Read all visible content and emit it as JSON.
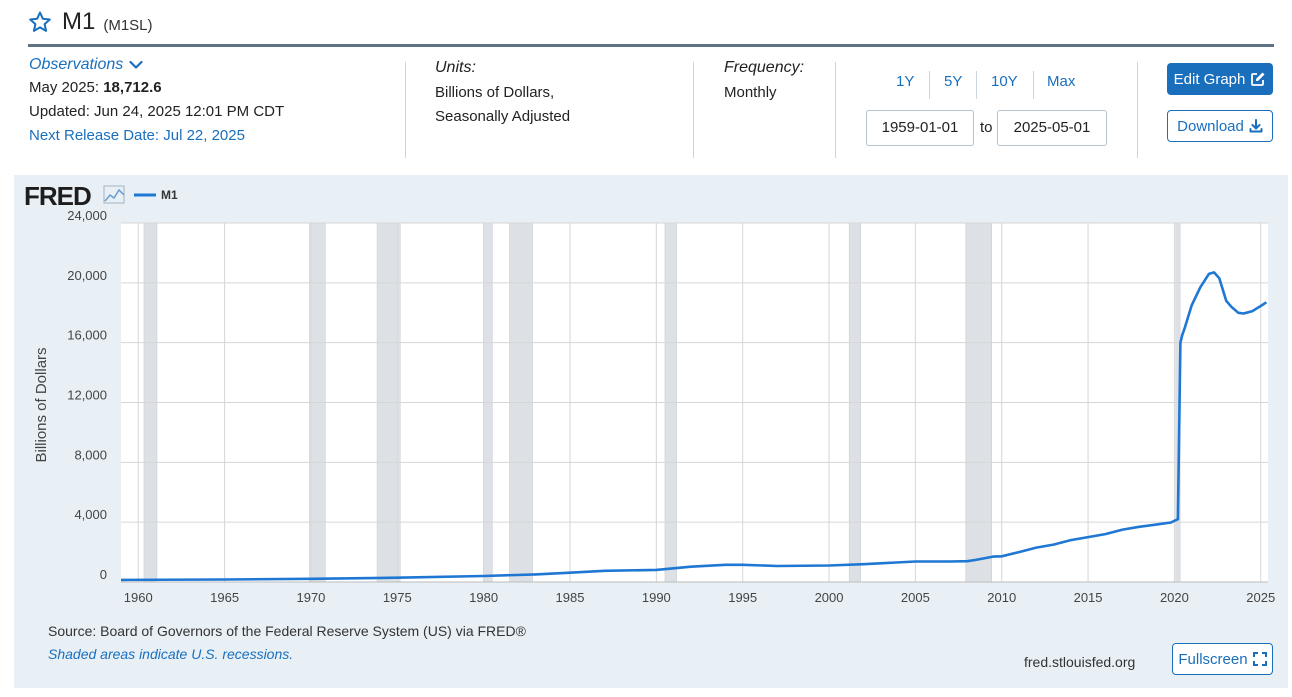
{
  "series": {
    "title": "M1",
    "code": "(M1SL)",
    "icons": {
      "favorite": "star-outline-icon"
    }
  },
  "observations": {
    "label": "Observations",
    "latest_label": "May 2025:",
    "latest_value": "18,712.6",
    "updated": "Updated: Jun 24, 2025 12:01 PM CDT",
    "next_release": "Next Release Date: Jul 22, 2025"
  },
  "units": {
    "label": "Units:",
    "line1": "Billions of Dollars,",
    "line2": "Seasonally Adjusted"
  },
  "frequency": {
    "label": "Frequency:",
    "value": "Monthly"
  },
  "range": {
    "buttons": [
      "1Y",
      "5Y",
      "10Y",
      "Max"
    ],
    "start": "1959-01-01",
    "to_label": "to",
    "end": "2025-05-01"
  },
  "actions": {
    "edit_graph": "Edit Graph",
    "download": "Download",
    "fullscreen": "Fullscreen"
  },
  "footer": {
    "source": "Source: Board of Governors of the Federal Reserve System (US) via FRED®",
    "recessions_note": "Shaded areas indicate U.S. recessions.",
    "site": "fred.stlouisfed.org"
  },
  "colors": {
    "accent": "#1a6fbd",
    "panel_bg": "#e8f0f6",
    "recession": "#dde1e6",
    "line": "#1f77d4"
  },
  "chart_data": {
    "type": "line",
    "title": "",
    "logo": "FRED",
    "legend": [
      {
        "name": "M1",
        "color": "#1f77d4"
      }
    ],
    "ylabel": "Billions of Dollars",
    "xlabel": "",
    "xlim": [
      1959.0,
      2025.42
    ],
    "ylim": [
      0,
      24000
    ],
    "y_ticks": [
      0,
      4000,
      8000,
      12000,
      16000,
      20000,
      24000
    ],
    "y_tick_labels": [
      "0",
      "4,000",
      "8,000",
      "12,000",
      "16,000",
      "20,000",
      "24,000"
    ],
    "x_ticks": [
      1960,
      1965,
      1970,
      1975,
      1980,
      1985,
      1990,
      1995,
      2000,
      2005,
      2010,
      2015,
      2020,
      2025
    ],
    "grid": true,
    "recessions": [
      [
        1960.33,
        1961.08
      ],
      [
        1969.92,
        1970.83
      ],
      [
        1973.83,
        1975.17
      ],
      [
        1980.0,
        1980.5
      ],
      [
        1981.5,
        1982.83
      ],
      [
        1990.5,
        1991.17
      ],
      [
        2001.17,
        2001.83
      ],
      [
        2007.92,
        2009.42
      ],
      [
        2020.08,
        2020.33
      ]
    ],
    "series": [
      {
        "name": "M1",
        "x": [
          1959.0,
          1965.0,
          1970.0,
          1975.0,
          1980.0,
          1983.0,
          1985.0,
          1987.0,
          1990.0,
          1992.0,
          1994.0,
          1995.0,
          1997.0,
          2000.0,
          2002.0,
          2005.0,
          2007.0,
          2008.0,
          2008.5,
          2009.5,
          2010.0,
          2011.0,
          2012.0,
          2013.0,
          2014.0,
          2015.0,
          2016.0,
          2017.0,
          2018.0,
          2019.0,
          2019.8,
          2020.2,
          2020.35,
          2020.45,
          2020.6,
          2021.0,
          2021.5,
          2022.0,
          2022.3,
          2022.6,
          2023.0,
          2023.3,
          2023.7,
          2024.0,
          2024.5,
          2025.0,
          2025.33
        ],
        "values": [
          140,
          170,
          215,
          285,
          400,
          510,
          620,
          750,
          810,
          1020,
          1150,
          1150,
          1070,
          1100,
          1190,
          1370,
          1370,
          1390,
          1480,
          1700,
          1720,
          2000,
          2300,
          2500,
          2800,
          3000,
          3200,
          3500,
          3700,
          3850,
          3980,
          4200,
          16000,
          16500,
          17000,
          18500,
          19700,
          20600,
          20700,
          20300,
          18800,
          18400,
          18000,
          17950,
          18100,
          18450,
          18700
        ]
      }
    ]
  }
}
